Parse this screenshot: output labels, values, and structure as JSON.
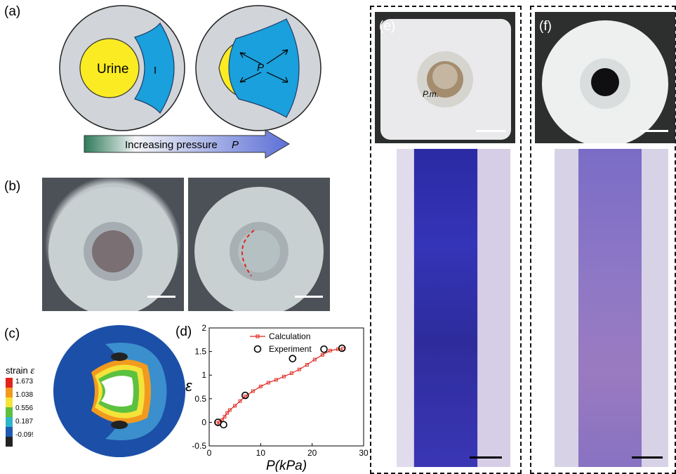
{
  "panels": {
    "a": {
      "label": "(a)",
      "urine_label": "Urine",
      "i_label": "I",
      "p_label": "P",
      "arrow_text": "Increasing pressure",
      "arrow_var": "P"
    },
    "b": {
      "label": "(b)"
    },
    "c": {
      "label": "(c)",
      "legend_title": "strain",
      "legend_symbol": "ε",
      "legend_values": [
        "1.673",
        "1.038",
        "0.556",
        "0.187",
        "-0.09!"
      ],
      "legend_colors": [
        "#e0241c",
        "#f29a1f",
        "#f5e23a",
        "#5cc13e",
        "#2fb4c8",
        "#1f59b0",
        "#222222"
      ]
    },
    "d": {
      "label": "(d)"
    },
    "e": {
      "label": "(e)",
      "annotation": "P.m."
    },
    "f": {
      "label": "(f)"
    }
  },
  "chart_data": {
    "type": "line",
    "xlabel": "P(kPa)",
    "ylabel": "ε",
    "xlim": [
      0,
      30
    ],
    "ylim": [
      -0.5,
      2
    ],
    "xticks": [
      "0",
      "10",
      "20",
      "30"
    ],
    "yticks": [
      "-0.5",
      "0",
      "0.5",
      "1",
      "1.5",
      "2"
    ],
    "legend_placement": "top-right",
    "series": [
      {
        "name": "Calculation",
        "color": "#e0241c",
        "marker": "square",
        "x": [
          1.5,
          2.0,
          2.5,
          3.0,
          3.5,
          4.0,
          5.0,
          6.0,
          7.0,
          8.5,
          10.0,
          11.5,
          13.0,
          14.5,
          16.0,
          17.5,
          19.0,
          20.5,
          22.0,
          23.5,
          25.0,
          26.0
        ],
        "y": [
          -0.02,
          0.0,
          0.05,
          0.12,
          0.2,
          0.26,
          0.35,
          0.45,
          0.55,
          0.66,
          0.76,
          0.84,
          0.9,
          0.97,
          1.04,
          1.12,
          1.22,
          1.33,
          1.43,
          1.52,
          1.55,
          1.56
        ]
      },
      {
        "name": "Experiment",
        "color": "#000000",
        "marker": "circle",
        "x": [
          1.7,
          2.8,
          7.0,
          16.2,
          22.3,
          25.8
        ],
        "y": [
          0.0,
          -0.05,
          0.57,
          1.35,
          1.55,
          1.57
        ]
      }
    ]
  }
}
